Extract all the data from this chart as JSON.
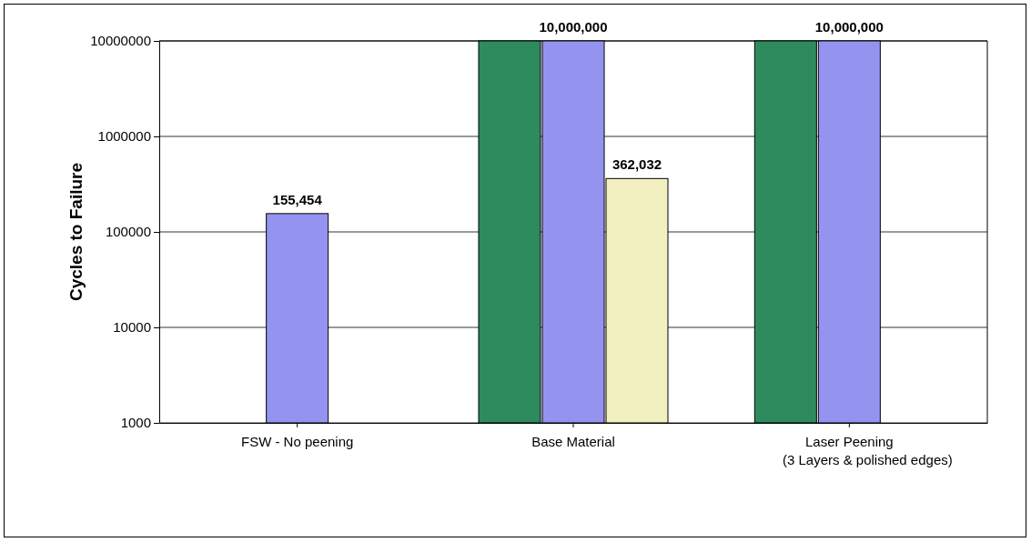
{
  "chart_data": {
    "type": "bar",
    "ylabel": "Cycles to Failure",
    "categories": [
      "FSW - No peening",
      "Base Material",
      "Laser Peening\n(3 Layers & polished edges)"
    ],
    "series": [
      {
        "color": "#2e8b5e",
        "values": [
          null,
          10000000,
          10000000
        ]
      },
      {
        "color": "#9494f0",
        "values": [
          155454,
          10000000,
          10000000
        ],
        "value_labels": [
          "155,454",
          "10,000,000",
          "10,000,000"
        ]
      },
      {
        "color": "#f2f0c0",
        "values": [
          null,
          362032,
          null
        ],
        "value_labels": [
          null,
          "362,032",
          null
        ]
      }
    ],
    "log": true,
    "ylim": [
      1000,
      10000000
    ],
    "yticks": [
      1000,
      10000,
      100000,
      1000000,
      10000000
    ],
    "grid": "y"
  }
}
